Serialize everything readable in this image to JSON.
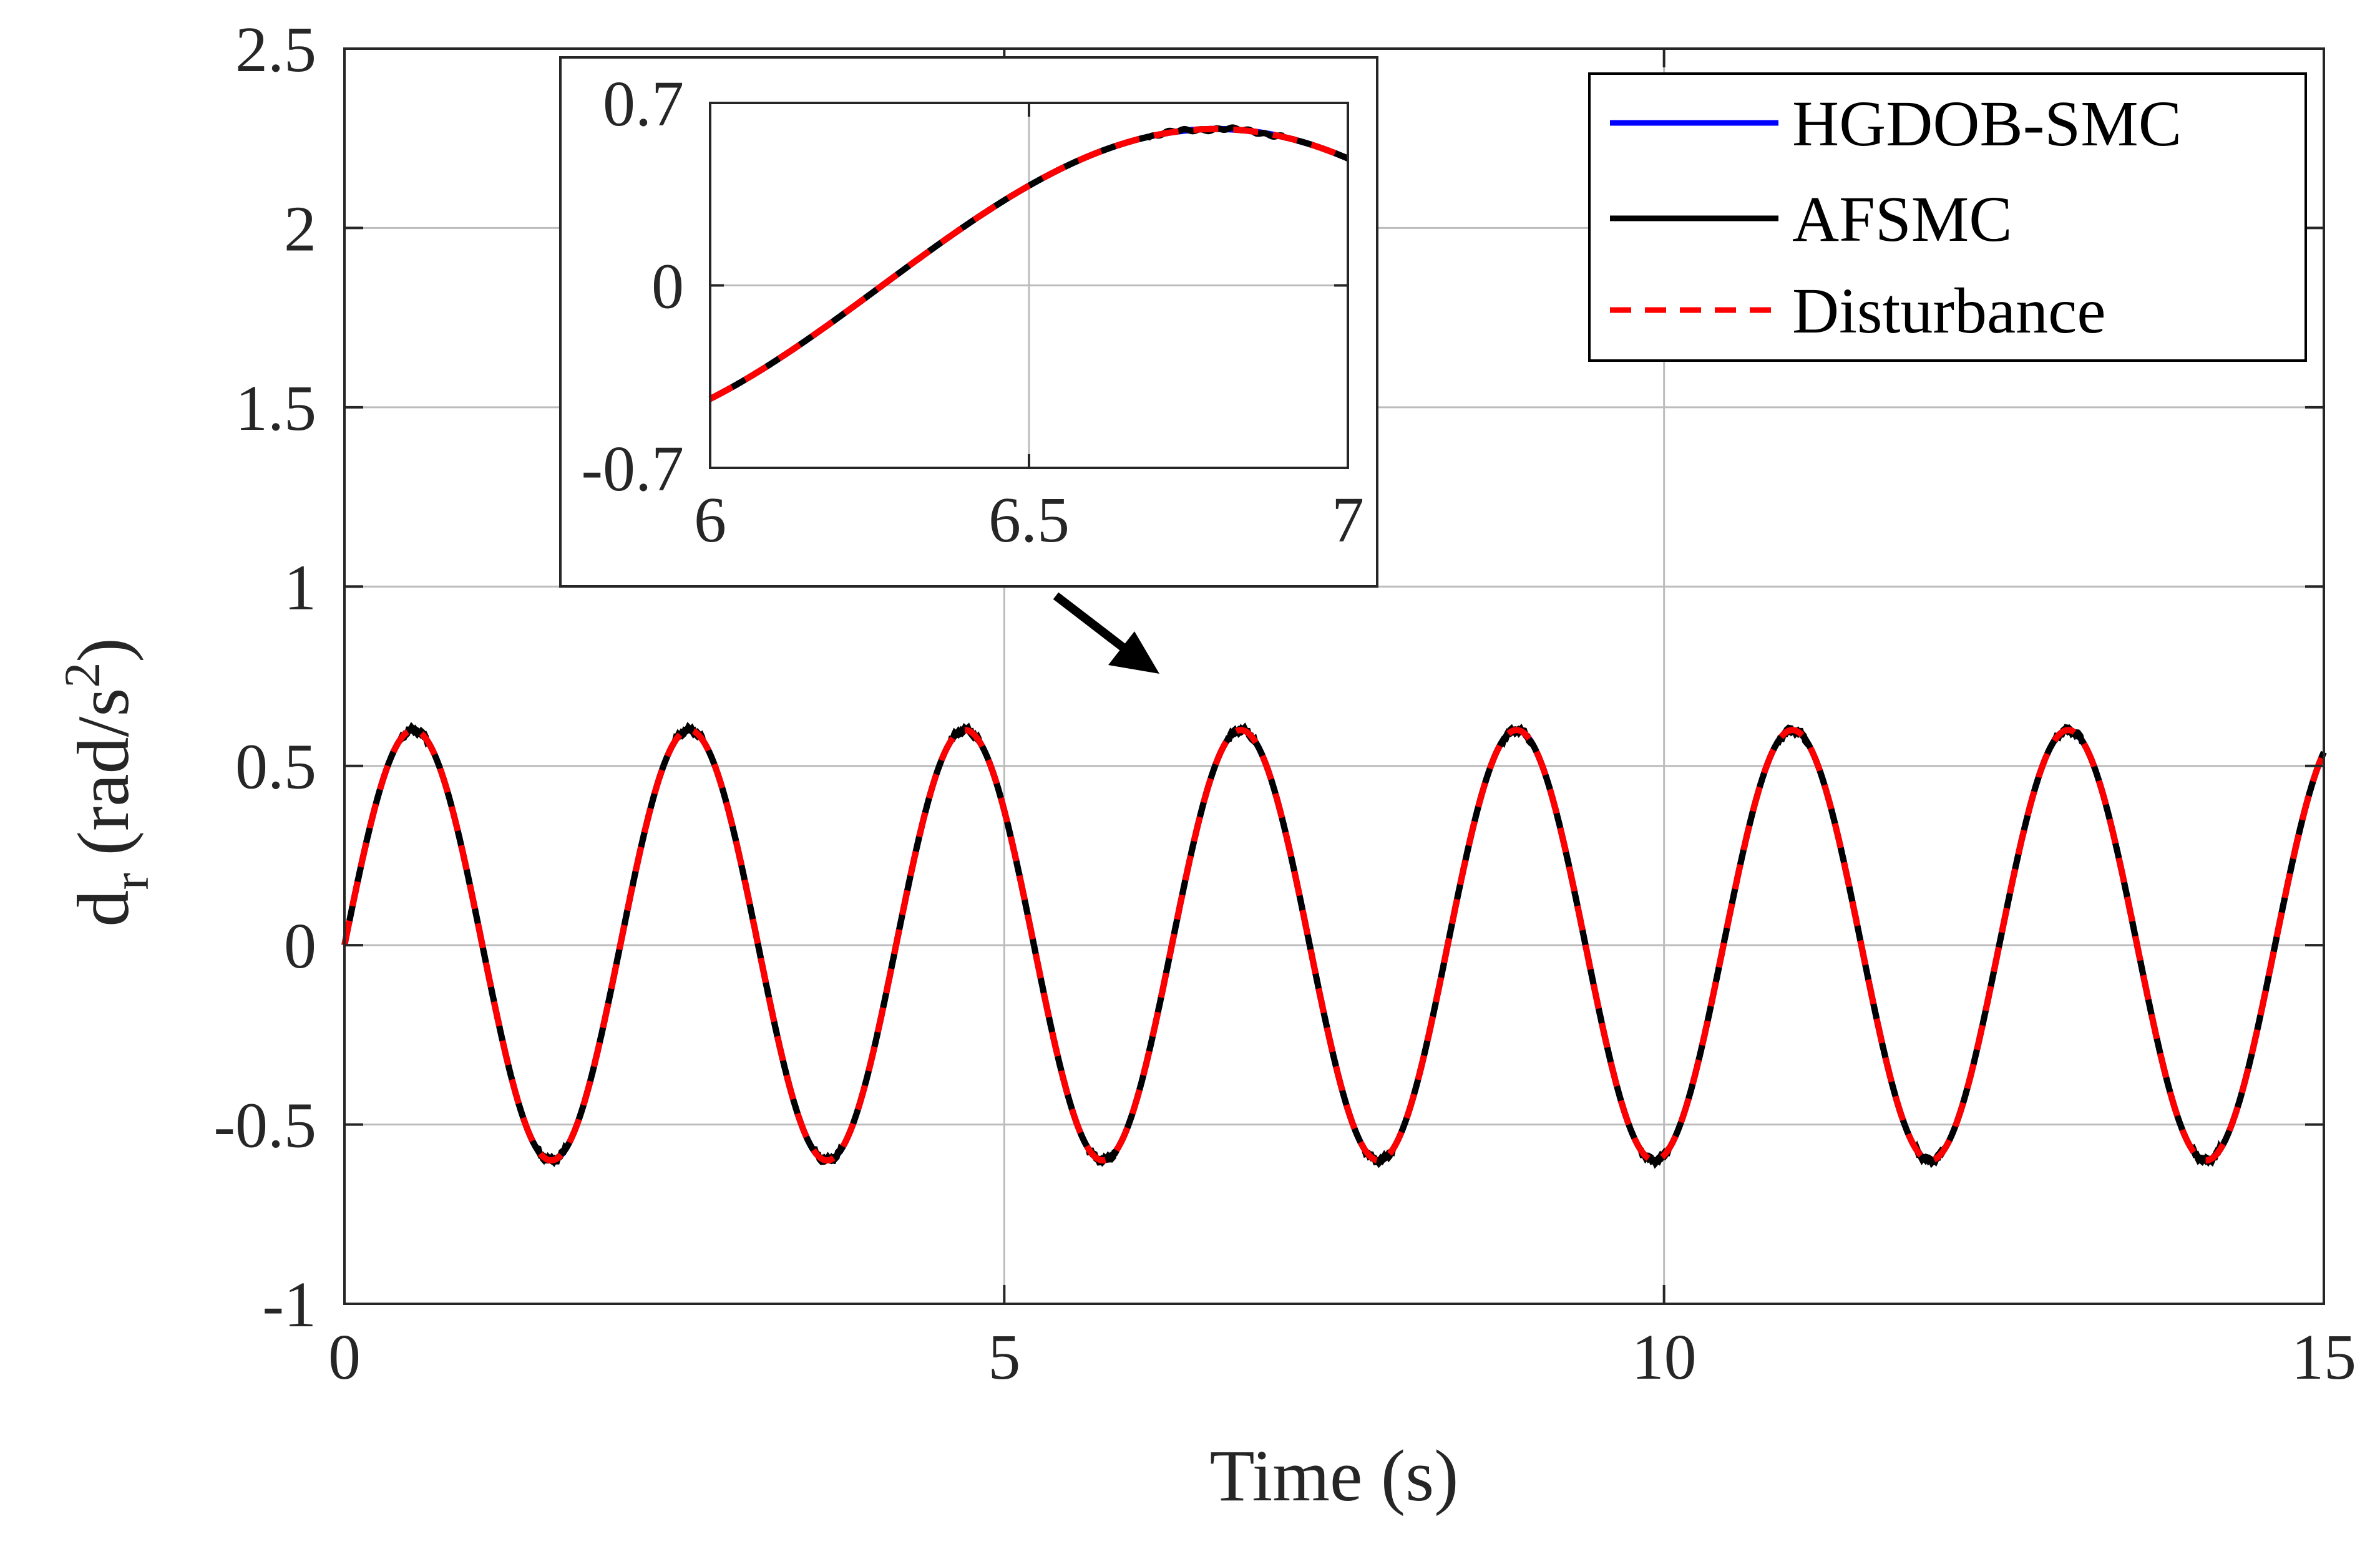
{
  "chart_data": [
    {
      "type": "line",
      "xlabel": "Time (s)",
      "ylabel": {
        "main": "d",
        "sub": "r",
        "unit_pre": "(rad/s",
        "unit_sup": "2",
        "unit_post": ")"
      },
      "xlim": [
        0,
        15
      ],
      "ylim": [
        -1,
        2.5
      ],
      "xticks": [
        0,
        5,
        10,
        15
      ],
      "yticks": [
        -1,
        -0.5,
        0,
        0.5,
        1,
        1.5,
        2,
        2.5
      ],
      "xtick_labels": [
        "0",
        "5",
        "10",
        "15"
      ],
      "ytick_labels": [
        "-1",
        "-0.5",
        "0",
        "0.5",
        "1",
        "1.5",
        "2",
        "2.5"
      ],
      "grid": true,
      "legend": "top-right",
      "signal": {
        "form": "amplitude * sin(2*pi*t / period)",
        "amplitude": 0.6,
        "period": 2.09,
        "t_range": [
          0,
          15
        ]
      },
      "series": [
        {
          "name": "HGDOB-SMC",
          "color": "#0000ff",
          "style": "solid"
        },
        {
          "name": "AFSMC",
          "color": "#000000",
          "style": "solid"
        },
        {
          "name": "Disturbance",
          "color": "#ff0000",
          "style": "dashed"
        }
      ]
    },
    {
      "type": "line",
      "role": "zoom-inset",
      "xlim": [
        6,
        7
      ],
      "ylim": [
        -0.7,
        0.7
      ],
      "xticks": [
        6,
        6.5,
        7
      ],
      "yticks": [
        -0.7,
        0,
        0.7
      ],
      "xtick_labels": [
        "6",
        "6.5",
        "7"
      ],
      "ytick_labels": [
        "-0.7",
        "0",
        "0.7"
      ],
      "grid": true,
      "pointer": "arrow toward curve near t = 6.5"
    }
  ],
  "colors": {
    "grid": "#bcbcbc",
    "axis": "#262626",
    "hgdob": "#0000ff",
    "afsmc": "#000000",
    "disturbance": "#ff0000"
  }
}
